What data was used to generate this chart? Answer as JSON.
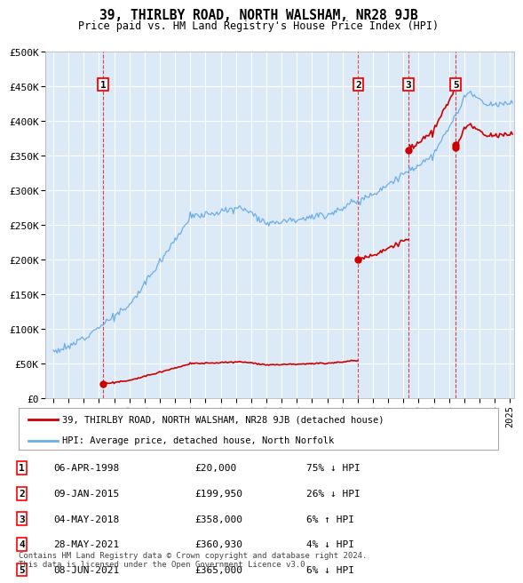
{
  "title": "39, THIRLBY ROAD, NORTH WALSHAM, NR28 9JB",
  "subtitle": "Price paid vs. HM Land Registry's House Price Index (HPI)",
  "hpi_label": "HPI: Average price, detached house, North Norfolk",
  "price_label": "39, THIRLBY ROAD, NORTH WALSHAM, NR28 9JB (detached house)",
  "background_color": "#ffffff",
  "plot_bg_color": "#dce9f7",
  "grid_color": "#ffffff",
  "hpi_color": "#6aaee8",
  "price_color": "#cc0000",
  "vline_color": "#cc0000",
  "transactions": [
    {
      "num": 1,
      "date_label": "06-APR-1998",
      "date_x": 1998.27,
      "price": 20000,
      "pct": "75% ↓ HPI"
    },
    {
      "num": 2,
      "date_label": "09-JAN-2015",
      "date_x": 2015.03,
      "price": 199950,
      "pct": "26% ↓ HPI"
    },
    {
      "num": 3,
      "date_label": "04-MAY-2018",
      "date_x": 2018.34,
      "price": 358000,
      "pct": "6% ↑ HPI"
    },
    {
      "num": 4,
      "date_label": "28-MAY-2021",
      "date_x": 2021.41,
      "price": 360930,
      "pct": "4% ↓ HPI"
    },
    {
      "num": 5,
      "date_label": "08-JUN-2021",
      "date_x": 2021.44,
      "price": 365000,
      "pct": "6% ↓ HPI"
    }
  ],
  "shown_vlines": [
    1,
    2,
    3,
    5
  ],
  "ylim": [
    0,
    500000
  ],
  "yticks": [
    0,
    50000,
    100000,
    150000,
    200000,
    250000,
    300000,
    350000,
    400000,
    450000,
    500000
  ],
  "ytick_labels": [
    "£0",
    "£50K",
    "£100K",
    "£150K",
    "£200K",
    "£250K",
    "£300K",
    "£350K",
    "£400K",
    "£450K",
    "£500K"
  ],
  "xlim": [
    1994.5,
    2025.3
  ],
  "footer": "Contains HM Land Registry data © Crown copyright and database right 2024.\nThis data is licensed under the Open Government Licence v3.0.",
  "hpi_seed": 12,
  "hpi_noise_std": 2500
}
